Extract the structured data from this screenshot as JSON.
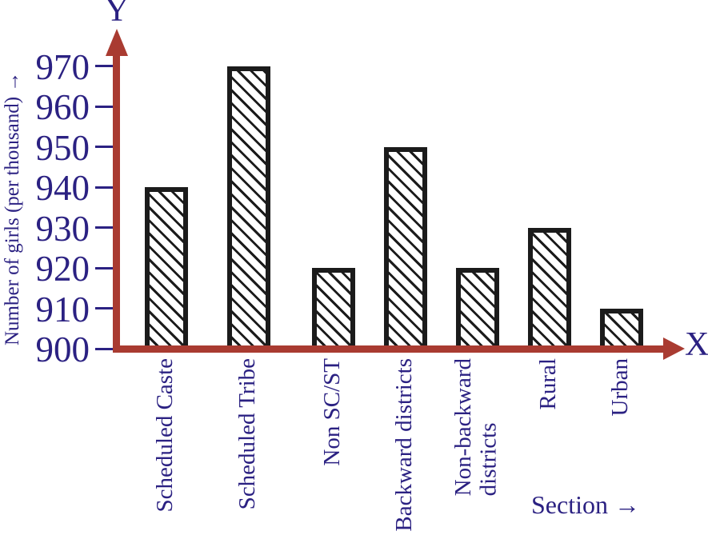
{
  "axes": {
    "y_letter": "Y",
    "x_letter": "X",
    "y_title": "Number of girls (per thousand) →",
    "x_title": "Section →"
  },
  "chart_data": {
    "type": "bar",
    "title": "",
    "categories": [
      "Scheduled Caste",
      "Scheduled Tribe",
      "Non SC/ST",
      "Backward districts",
      "Non-backward districts",
      "Rural",
      "Urban"
    ],
    "values": [
      940,
      970,
      920,
      950,
      920,
      930,
      910
    ],
    "x_tick_display": [
      "Scheduled Caste",
      "Scheduled Tribe",
      "Non SC/ST",
      "Backward districts",
      "Non-backward\ndistricts",
      "Rural",
      "Urban"
    ],
    "xlabel": "Section",
    "ylabel": "Number of girls (per thousand)",
    "ylim": [
      900,
      977
    ],
    "yticks": [
      900,
      910,
      920,
      930,
      940,
      950,
      960,
      970
    ],
    "grid": false,
    "legend": false,
    "bar_style": "white fill, black diagonal hatch (backslash direction), thick black border",
    "colors": {
      "axis": "#a93b31",
      "text": "#2b2182",
      "bar_border": "#1b1b1b",
      "bar_fill": "#ffffff",
      "background": "#ffffff"
    }
  }
}
